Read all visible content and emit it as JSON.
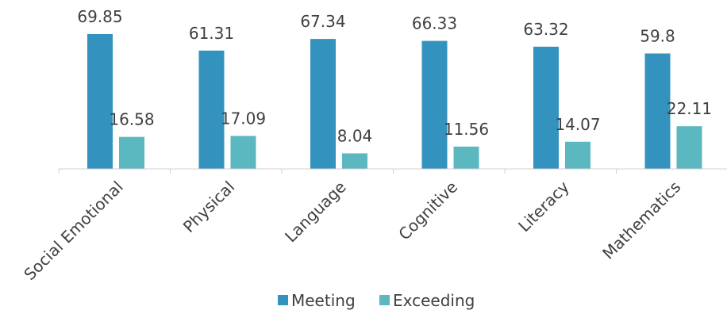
{
  "chart_data": {
    "type": "bar",
    "categories": [
      "Social Emotional",
      "Physical",
      "Language",
      "Cognitive",
      "Literacy",
      "Mathematics"
    ],
    "series": [
      {
        "name": "Meeting",
        "color": "#3393BE",
        "values": [
          69.85,
          61.31,
          67.34,
          66.33,
          63.32,
          59.8
        ],
        "labels": [
          "69.85",
          "61.31",
          "67.34",
          "66.33",
          "63.32",
          "59.8"
        ]
      },
      {
        "name": "Exceeding",
        "color": "#5BB8C1",
        "values": [
          16.58,
          17.09,
          8.04,
          11.56,
          14.07,
          22.11
        ],
        "labels": [
          "16.58",
          "17.09",
          "8.04",
          "11.56",
          "14.07",
          "22.11"
        ]
      }
    ],
    "ylim": [
      0,
      70
    ],
    "grid": false,
    "legend": "bottom",
    "x_tick_rotation": -45
  }
}
